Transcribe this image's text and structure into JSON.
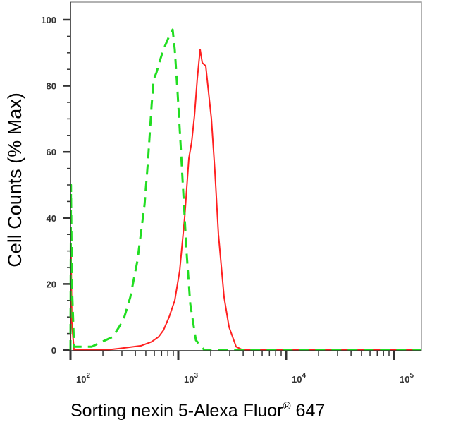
{
  "chart_data": {
    "type": "line",
    "title": "",
    "xlabel": "Sorting nexin 5-Alexa Fluor",
    "xlabel_superscript": "®",
    "xlabel_suffix": " 647",
    "ylabel": "Cell Counts (% Max)",
    "xscale": "log",
    "xlim": [
      100,
      180000
    ],
    "ylim": [
      0,
      105
    ],
    "grid": false,
    "x_ticks": [
      {
        "value": 100,
        "base": "10",
        "exp": "2"
      },
      {
        "value": 1000,
        "base": "10",
        "exp": "3"
      },
      {
        "value": 10000,
        "base": "10",
        "exp": "4"
      },
      {
        "value": 100000,
        "base": "10",
        "exp": "5"
      }
    ],
    "y_ticks": [
      "0",
      "20",
      "40",
      "60",
      "80",
      "100"
    ],
    "series": [
      {
        "color": "#ff2020",
        "style": "solid",
        "points": [
          [
            100,
            0
          ],
          [
            101,
            32
          ],
          [
            103,
            8
          ],
          [
            108,
            0
          ],
          [
            212,
            0
          ],
          [
            287,
            0.5
          ],
          [
            451,
            1.3
          ],
          [
            565,
            2.5
          ],
          [
            656,
            4
          ],
          [
            729,
            6
          ],
          [
            822,
            10
          ],
          [
            927,
            15
          ],
          [
            1030,
            24
          ],
          [
            1145,
            40
          ],
          [
            1253,
            58
          ],
          [
            1331,
            63
          ],
          [
            1413,
            71
          ],
          [
            1500,
            82
          ],
          [
            1594,
            91
          ],
          [
            1668,
            87
          ],
          [
            1798,
            86
          ],
          [
            1909,
            78
          ],
          [
            2028,
            70
          ],
          [
            2186,
            54
          ],
          [
            2358,
            35
          ],
          [
            2661,
            16
          ],
          [
            2957,
            7
          ],
          [
            3438,
            1
          ],
          [
            3990,
            0
          ],
          [
            179000,
            0
          ]
        ]
      },
      {
        "color": "#22dd22",
        "style": "dashed",
        "points": [
          [
            100,
            0
          ],
          [
            101,
            50
          ],
          [
            103,
            20
          ],
          [
            108,
            1
          ],
          [
            157,
            1
          ],
          [
            182,
            2
          ],
          [
            247,
            4
          ],
          [
            309,
            9
          ],
          [
            359,
            16
          ],
          [
            418,
            27
          ],
          [
            486,
            44
          ],
          [
            523,
            57
          ],
          [
            565,
            74
          ],
          [
            591,
            82
          ],
          [
            627,
            84
          ],
          [
            666,
            87
          ],
          [
            729,
            91
          ],
          [
            822,
            95
          ],
          [
            887,
            97
          ],
          [
            927,
            91
          ],
          [
            985,
            78
          ],
          [
            1047,
            63
          ],
          [
            1111,
            48
          ],
          [
            1198,
            29
          ],
          [
            1291,
            14
          ],
          [
            1456,
            3
          ],
          [
            1745,
            0
          ],
          [
            2028,
            0
          ],
          [
            179000,
            0
          ]
        ]
      }
    ]
  }
}
